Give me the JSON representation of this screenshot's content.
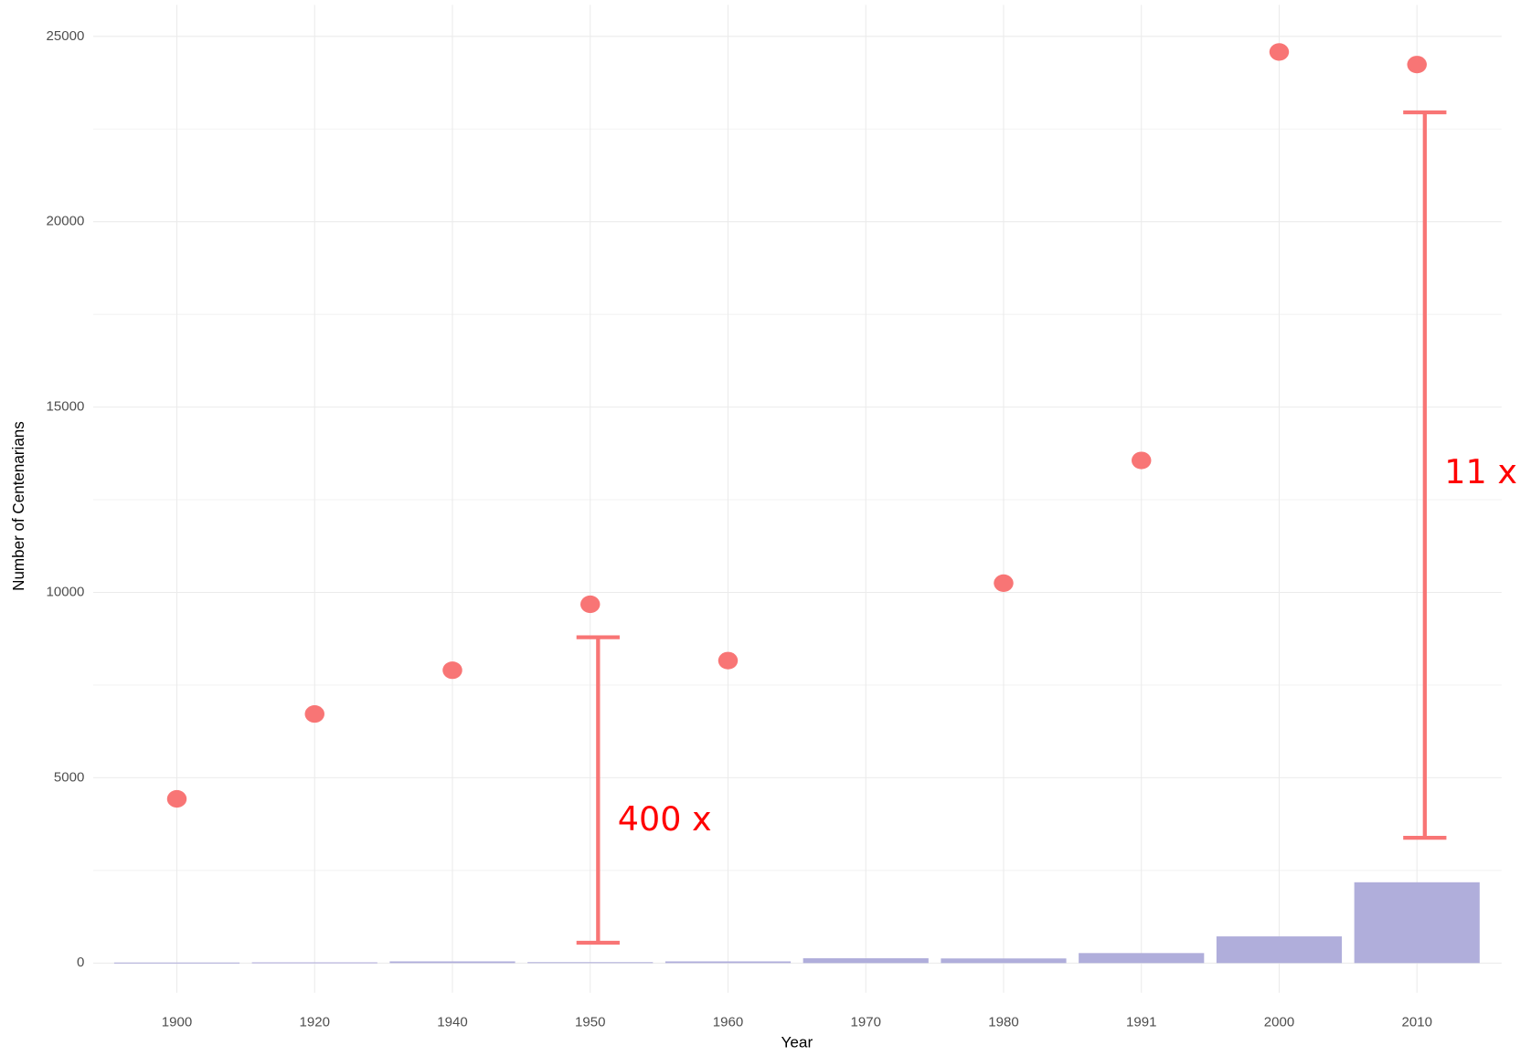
{
  "chart_data": {
    "type": "bar_point",
    "xlabel": "Year",
    "ylabel": "Number of Centenarians",
    "categories": [
      "1900",
      "1920",
      "1940",
      "1950",
      "1960",
      "1970",
      "1980",
      "1991",
      "2000",
      "2010"
    ],
    "series": [
      {
        "kind": "bar",
        "color": "#b0aedb",
        "values": [
          15,
          20,
          45,
          25,
          45,
          130,
          125,
          270,
          720,
          2180
        ]
      },
      {
        "kind": "point",
        "color": "#f87575",
        "values": [
          4430,
          6720,
          7900,
          9680,
          8160,
          null,
          10250,
          13560,
          24580,
          24240
        ]
      }
    ],
    "annotations": [
      {
        "x": "1950",
        "low": 550,
        "high": 8790,
        "label": "400 x"
      },
      {
        "x": "2010",
        "low": 3380,
        "high": 22950,
        "label": "11 x"
      }
    ],
    "annotation_color": "#f87575",
    "annotation_text_color": "#ff0000",
    "ylim": [
      -800,
      25850
    ],
    "yticks": [
      0,
      5000,
      10000,
      15000,
      20000,
      25000
    ],
    "yminor_ticks": [
      2500,
      7500,
      12500,
      17500,
      22500
    ],
    "grid": true
  }
}
